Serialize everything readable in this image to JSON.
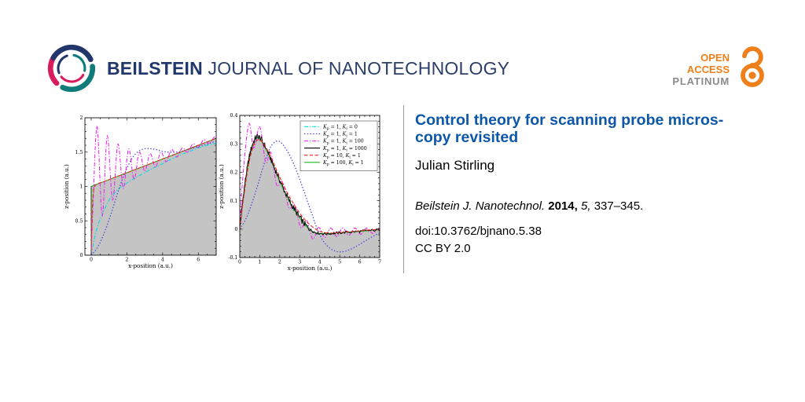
{
  "header": {
    "brand_bold": "BEILSTEIN",
    "brand_rest": "JOURNAL OF NANOTECHNOLOGY",
    "colors": {
      "navy": "#21366b",
      "teal": "#0f7b7b",
      "crimson": "#d81b5d",
      "orange": "#ef7f1a",
      "gray": "#8a8a8a"
    },
    "open_access": {
      "line1": "OPEN",
      "line2": "ACCESS",
      "line3": "PLATINUM"
    }
  },
  "article": {
    "title_lines": [
      "Control theory for scanning probe micros-",
      "copy revisited"
    ],
    "author": "Julian Stirling",
    "citation": {
      "journal": "Beilstein J. Nanotechnol.",
      "year": "2014,",
      "volume": "5,",
      "pages": "337–345."
    },
    "doi": "doi:10.3762/bjnano.5.38",
    "license": "CC BY 2.0"
  },
  "chart_data": [
    {
      "type": "line",
      "title": "",
      "xlabel": "x-position (a.u.)",
      "ylabel": "z-position (a.u.)",
      "xlim": [
        -0.35,
        7
      ],
      "ylim": [
        0,
        2
      ],
      "xticks": [
        0,
        2,
        4,
        6
      ],
      "yticks": [
        0,
        0.5,
        1,
        1.5,
        2
      ],
      "x_minor_step": 0.5,
      "y_minor_step": 0.1,
      "grid": false,
      "legend": false,
      "fill": {
        "name": "sample-topography",
        "color": "#c4c4c4",
        "outline": true,
        "points": [
          [
            -0.35,
            0
          ],
          [
            0,
            0
          ],
          [
            0,
            1
          ],
          [
            7,
            1.7
          ]
        ]
      },
      "series": [
        {
          "name": "Kp = 1, Ki = 0",
          "color": "#00dede",
          "dash": "dashdot",
          "smooth": true,
          "z": 1,
          "points": [
            [
              0,
              0
            ],
            [
              0.2,
              0.26
            ],
            [
              0.4,
              0.45
            ],
            [
              0.6,
              0.58
            ],
            [
              0.8,
              0.7
            ],
            [
              1,
              0.8
            ],
            [
              1.3,
              0.9
            ],
            [
              1.6,
              0.98
            ],
            [
              2,
              1.05
            ],
            [
              2.5,
              1.13
            ],
            [
              3,
              1.2
            ],
            [
              3.5,
              1.27
            ],
            [
              4,
              1.33
            ],
            [
              4.5,
              1.4
            ],
            [
              5,
              1.46
            ],
            [
              5.5,
              1.51
            ],
            [
              6,
              1.56
            ],
            [
              6.5,
              1.6
            ],
            [
              7,
              1.63
            ]
          ]
        },
        {
          "name": "Kp = 1, Ki = 1",
          "color": "#4040d8",
          "dash": "dot",
          "smooth": true,
          "z": 2,
          "points": [
            [
              0,
              0
            ],
            [
              0.3,
              0.09
            ],
            [
              0.6,
              0.24
            ],
            [
              0.9,
              0.44
            ],
            [
              1.2,
              0.67
            ],
            [
              1.5,
              0.92
            ],
            [
              1.8,
              1.14
            ],
            [
              2.1,
              1.32
            ],
            [
              2.4,
              1.45
            ],
            [
              2.7,
              1.52
            ],
            [
              3,
              1.55
            ],
            [
              3.3,
              1.55
            ],
            [
              3.6,
              1.54
            ],
            [
              4,
              1.51
            ],
            [
              4.4,
              1.5
            ],
            [
              4.8,
              1.5
            ],
            [
              5.2,
              1.52
            ],
            [
              5.6,
              1.55
            ],
            [
              6,
              1.58
            ],
            [
              6.5,
              1.62
            ],
            [
              7,
              1.66
            ]
          ]
        },
        {
          "name": "Kp = 1, Ki = 100",
          "color": "#ee22ee",
          "dash": "dashdot",
          "smooth": true,
          "z": 3,
          "points": [
            [
              0,
              0
            ],
            [
              0.1,
              0.7
            ],
            [
              0.33,
              1.88
            ],
            [
              0.62,
              0.57
            ],
            [
              0.9,
              1.74
            ],
            [
              1.2,
              0.8
            ],
            [
              1.5,
              1.62
            ],
            [
              1.8,
              0.97
            ],
            [
              2.1,
              1.55
            ],
            [
              2.4,
              1.1
            ],
            [
              2.7,
              1.5
            ],
            [
              3,
              1.22
            ],
            [
              3.3,
              1.48
            ],
            [
              3.6,
              1.28
            ],
            [
              3.9,
              1.5
            ],
            [
              4.2,
              1.36
            ],
            [
              4.5,
              1.54
            ],
            [
              4.8,
              1.43
            ],
            [
              5.1,
              1.56
            ],
            [
              5.4,
              1.5
            ],
            [
              5.7,
              1.62
            ],
            [
              6,
              1.57
            ],
            [
              6.3,
              1.68
            ],
            [
              6.6,
              1.63
            ],
            [
              6.9,
              1.72
            ],
            [
              7,
              1.7
            ]
          ]
        },
        {
          "name": "Kp = 10, Ki = 1",
          "color": "#ee2222",
          "dash": "dash",
          "smooth": true,
          "z": 5,
          "points": [
            [
              0,
              0
            ],
            [
              0.04,
              0.5
            ],
            [
              0.09,
              0.82
            ],
            [
              0.16,
              0.97
            ],
            [
              0.25,
              1.02
            ],
            [
              0.4,
              1.045
            ],
            [
              0.7,
              1.07
            ],
            [
              1,
              1.1
            ],
            [
              1.5,
              1.15
            ],
            [
              2,
              1.2
            ],
            [
              3,
              1.3
            ],
            [
              4,
              1.4
            ],
            [
              5,
              1.5
            ],
            [
              6,
              1.6
            ],
            [
              7,
              1.7
            ]
          ]
        },
        {
          "name": "Kp = 100, Ki = 1",
          "color": "#22bb22",
          "dash": "dash",
          "smooth": true,
          "z": 4,
          "points": [
            [
              0,
              0
            ],
            [
              0.015,
              0.6
            ],
            [
              0.03,
              0.95
            ],
            [
              0.05,
              1.002
            ],
            [
              0.3,
              1.03
            ],
            [
              1,
              1.1
            ],
            [
              2,
              1.2
            ],
            [
              3,
              1.3
            ],
            [
              4,
              1.4
            ],
            [
              5,
              1.5
            ],
            [
              6,
              1.6
            ],
            [
              7,
              1.7
            ]
          ]
        }
      ]
    },
    {
      "type": "line",
      "title": "",
      "xlabel": "x-position (a.u.)",
      "ylabel": "z-position (a.u.)",
      "xlim": [
        0,
        7
      ],
      "ylim": [
        -0.1,
        0.4
      ],
      "xticks": [
        0,
        1,
        2,
        3,
        4,
        5,
        6,
        7
      ],
      "yticks": [
        -0.1,
        0,
        0.1,
        0.2,
        0.3,
        0.4
      ],
      "x_minor_step": 0.25,
      "y_minor_step": 0.02,
      "grid": false,
      "legend": true,
      "legend_position": "upper right",
      "fill": {
        "name": "error-area",
        "color": "#c4c4c4",
        "outline": false,
        "series_ref": 3
      },
      "series": [
        {
          "name": "Kp = 1, Ki = 0",
          "color": "#00dede",
          "dash": "dashdot",
          "smooth": true,
          "z": 0,
          "points": []
        },
        {
          "name": "Kp = 1, Ki = 1",
          "color": "#4040d8",
          "dash": "dot",
          "smooth": true,
          "z": 1,
          "points": [
            [
              0,
              0
            ],
            [
              0.3,
              0.035
            ],
            [
              0.6,
              0.09
            ],
            [
              0.9,
              0.155
            ],
            [
              1.2,
              0.225
            ],
            [
              1.5,
              0.283
            ],
            [
              1.7,
              0.303
            ],
            [
              1.9,
              0.31
            ],
            [
              2.1,
              0.302
            ],
            [
              2.4,
              0.272
            ],
            [
              2.7,
              0.229
            ],
            [
              3,
              0.175
            ],
            [
              3.3,
              0.115
            ],
            [
              3.6,
              0.055
            ],
            [
              3.9,
              -0.004
            ],
            [
              4.2,
              -0.044
            ],
            [
              4.5,
              -0.067
            ],
            [
              4.8,
              -0.078
            ],
            [
              5.1,
              -0.08
            ],
            [
              5.4,
              -0.075
            ],
            [
              5.8,
              -0.062
            ],
            [
              6.2,
              -0.045
            ],
            [
              6.6,
              -0.028
            ],
            [
              7,
              -0.013
            ]
          ]
        },
        {
          "name": "Kp = 1, Ki = 100",
          "color": "#ee22ee",
          "dash": "dashdot",
          "smooth": true,
          "z": 2,
          "points": [
            [
              0,
              0
            ],
            [
              0.15,
              0.18
            ],
            [
              0.45,
              0.37
            ],
            [
              0.7,
              0.285
            ],
            [
              1,
              0.36
            ],
            [
              1.3,
              0.235
            ],
            [
              1.55,
              0.27
            ],
            [
              1.85,
              0.155
            ],
            [
              2.15,
              0.165
            ],
            [
              2.45,
              0.075
            ],
            [
              2.75,
              0.085
            ],
            [
              3.05,
              0.005
            ],
            [
              3.35,
              0.03
            ],
            [
              3.65,
              -0.035
            ],
            [
              3.95,
              0.006
            ],
            [
              4.25,
              -0.03
            ],
            [
              4.55,
              0.004
            ],
            [
              4.85,
              -0.026
            ],
            [
              5.15,
              0.004
            ],
            [
              5.45,
              -0.022
            ],
            [
              5.75,
              0.004
            ],
            [
              6.05,
              -0.018
            ],
            [
              6.35,
              0.004
            ],
            [
              6.65,
              -0.015
            ],
            [
              6.95,
              0.002
            ],
            [
              7,
              0
            ]
          ]
        },
        {
          "name": "Kp = 1, Ki = 1000",
          "color": "#000000",
          "dash": "solid",
          "smooth": true,
          "z": 4,
          "noise": {
            "amp": 0.011,
            "calm_after": 3.5,
            "calm_scale": 0.45
          },
          "points": [
            [
              0,
              0
            ],
            [
              0.2,
              0.13
            ],
            [
              0.4,
              0.225
            ],
            [
              0.6,
              0.29
            ],
            [
              0.85,
              0.325
            ],
            [
              1.1,
              0.312
            ],
            [
              1.4,
              0.272
            ],
            [
              1.7,
              0.222
            ],
            [
              2,
              0.172
            ],
            [
              2.3,
              0.125
            ],
            [
              2.6,
              0.085
            ],
            [
              2.9,
              0.052
            ],
            [
              3.2,
              0.022
            ],
            [
              3.5,
              0
            ],
            [
              3.8,
              -0.012
            ],
            [
              4.2,
              -0.016
            ],
            [
              4.6,
              -0.015
            ],
            [
              5,
              -0.013
            ],
            [
              5.5,
              -0.01
            ],
            [
              6,
              -0.008
            ],
            [
              6.5,
              -0.005
            ],
            [
              7,
              -0.002
            ]
          ]
        },
        {
          "name": "Kp = 10, Ki = 1",
          "color": "#ee2222",
          "dash": "dash",
          "smooth": true,
          "z": 5,
          "points": [
            [
              0,
              0
            ],
            [
              0.2,
              0.115
            ],
            [
              0.45,
              0.23
            ],
            [
              0.7,
              0.295
            ],
            [
              0.95,
              0.315
            ],
            [
              1.2,
              0.3
            ],
            [
              1.5,
              0.262
            ],
            [
              1.8,
              0.215
            ],
            [
              2.1,
              0.168
            ],
            [
              2.4,
              0.125
            ],
            [
              2.7,
              0.088
            ],
            [
              3,
              0.056
            ],
            [
              3.3,
              0.03
            ],
            [
              3.6,
              0.01
            ],
            [
              3.9,
              -0.004
            ],
            [
              4.2,
              -0.012
            ],
            [
              4.6,
              -0.014
            ],
            [
              5,
              -0.012
            ],
            [
              5.5,
              -0.009
            ],
            [
              6,
              -0.006
            ],
            [
              6.5,
              -0.003
            ],
            [
              7,
              -0.001
            ]
          ]
        },
        {
          "name": "Kp = 100, Ki = 1",
          "color": "#22bb22",
          "dash": "solid",
          "smooth": true,
          "z": 3,
          "points": [
            [
              0,
              0
            ],
            [
              0.2,
              0.128
            ],
            [
              0.4,
              0.222
            ],
            [
              0.6,
              0.287
            ],
            [
              0.85,
              0.322
            ],
            [
              1.1,
              0.308
            ],
            [
              1.4,
              0.268
            ],
            [
              1.7,
              0.218
            ],
            [
              2,
              0.168
            ],
            [
              2.3,
              0.122
            ],
            [
              2.6,
              0.082
            ],
            [
              2.9,
              0.05
            ],
            [
              3.2,
              0.02
            ],
            [
              3.5,
              -0.002
            ],
            [
              3.8,
              -0.013
            ],
            [
              4.2,
              -0.016
            ],
            [
              4.6,
              -0.015
            ],
            [
              5,
              -0.013
            ],
            [
              5.5,
              -0.01
            ],
            [
              6,
              -0.008
            ],
            [
              6.5,
              -0.005
            ],
            [
              7,
              -0.002
            ]
          ]
        }
      ]
    }
  ]
}
